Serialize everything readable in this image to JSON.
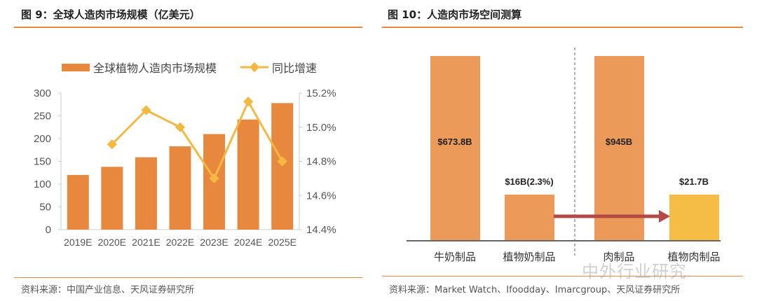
{
  "left": {
    "title": "图 9：全球人造肉市场规模（亿美元）",
    "source": "资料来源：中国产业信息、天风证券研究所"
  },
  "right": {
    "title": "图 10：人造肉市场空间测算",
    "source": "资料来源：Market Watch、Ifoodday、Imarcgroup、天风证券研究所"
  },
  "watermark": "中外行业研究",
  "chart_data": [
    {
      "type": "bar+line",
      "categories": [
        "2019E",
        "2020E",
        "2021E",
        "2022E",
        "2023E",
        "2024E",
        "2025E"
      ],
      "series": [
        {
          "name": "全球植物人造肉市场规模",
          "type": "bar",
          "axis": "left",
          "color": "#e8883f",
          "values": [
            120,
            138,
            159,
            183,
            210,
            242,
            278
          ]
        },
        {
          "name": "同比增速",
          "type": "line",
          "axis": "right",
          "color": "#f5b942",
          "values": [
            null,
            14.9,
            15.1,
            15.0,
            14.7,
            15.15,
            14.8
          ]
        }
      ],
      "ylim": [
        0,
        300
      ],
      "yticks": [
        "0",
        "50",
        "100",
        "150",
        "200",
        "250",
        "300"
      ],
      "y2lim": [
        14.4,
        15.2
      ],
      "y2ticks": [
        "14.4%",
        "14.6%",
        "14.8%",
        "15.0%",
        "15.2%"
      ],
      "legend": "top"
    },
    {
      "type": "bar",
      "categories": [
        "牛奶制品",
        "植物奶制品",
        "肉制品",
        "植物肉制品"
      ],
      "labels": [
        "$673.8B",
        "$16B(2.3%)",
        "$945B",
        "$21.7B"
      ],
      "colors": [
        "#ec9a5a",
        "#ec9a5a",
        "#ec9a5a",
        "#f5bd45"
      ],
      "note": "schematic: small bars not to scale"
    }
  ]
}
